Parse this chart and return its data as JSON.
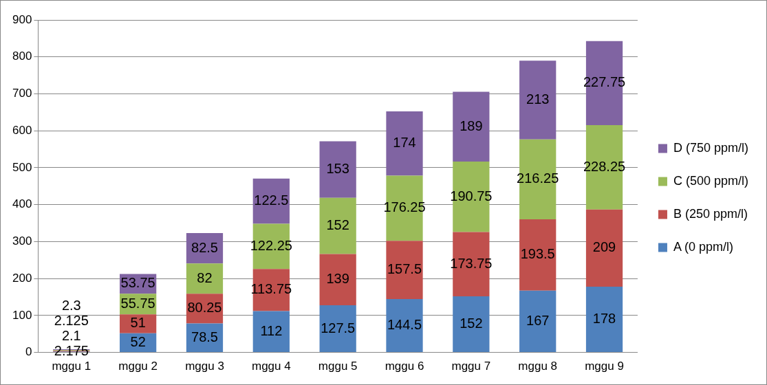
{
  "chart_data": {
    "type": "bar",
    "stacked": true,
    "categories": [
      "mggu 1",
      "mggu 2",
      "mggu 3",
      "mggu 4",
      "mggu 5",
      "mggu 6",
      "mggu 7",
      "mggu 8",
      "mggu 9"
    ],
    "series": [
      {
        "name": "A (0 ppm/l)",
        "color": "#4f81bd",
        "values": [
          2.175,
          52,
          78.5,
          112,
          127.5,
          144.5,
          152,
          167,
          178
        ]
      },
      {
        "name": "B (250 ppm/l)",
        "color": "#c0504d",
        "values": [
          2.1,
          51,
          80.25,
          113.75,
          139,
          157.5,
          173.75,
          193.5,
          209
        ]
      },
      {
        "name": "C (500 ppm/l)",
        "color": "#9bbb59",
        "values": [
          2.125,
          55.75,
          82,
          122.25,
          152,
          176.25,
          190.75,
          216.25,
          228.25
        ]
      },
      {
        "name": "D (750 ppm/l)",
        "color": "#8064a2",
        "values": [
          2.3,
          53.75,
          82.5,
          122.5,
          153,
          174,
          189,
          213,
          227.75
        ]
      }
    ],
    "ylim": [
      0,
      900
    ],
    "yticks": [
      0,
      100,
      200,
      300,
      400,
      500,
      600,
      700,
      800,
      900
    ],
    "grid": "y",
    "legend": "right",
    "data_labels": true
  }
}
